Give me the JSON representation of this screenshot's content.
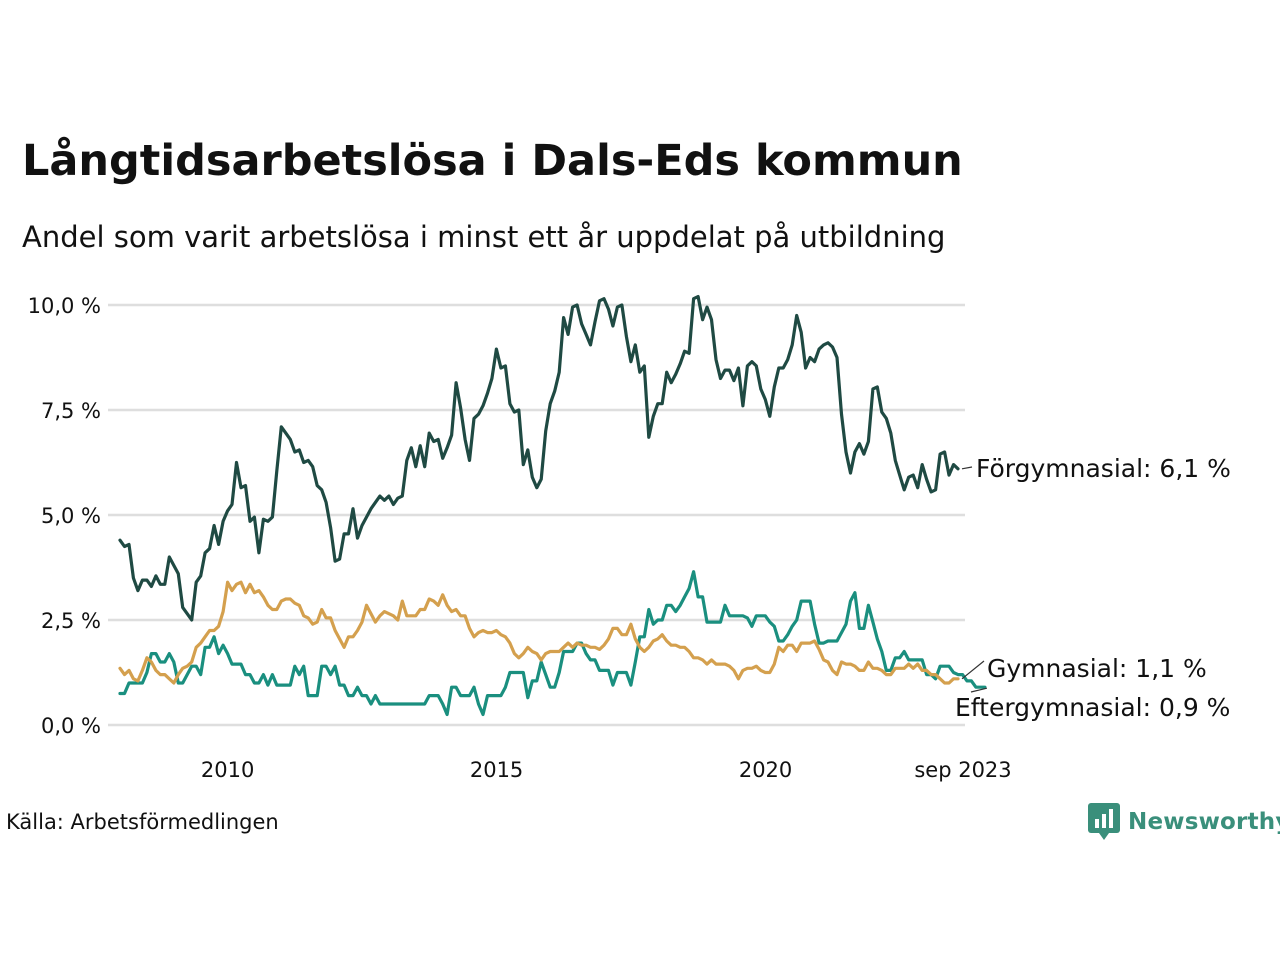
{
  "title": "Långtidsarbetslösa i Dals-Eds kommun",
  "subtitle": "Andel som varit arbetslösa i minst ett år uppdelat på utbildning",
  "source": "Källa: Arbetsförmedlingen",
  "brand": {
    "name": "Newsworthy",
    "icon": "newsworthy-logo-icon",
    "color": "#3a8f7b"
  },
  "chart_data": {
    "type": "line",
    "title": "Långtidsarbetslösa i Dals-Eds kommun",
    "subtitle": "Andel som varit arbetslösa i minst ett år uppdelat på utbildning",
    "xlabel": "",
    "ylabel": "",
    "x_start": 2008.0,
    "x_step": 0.0833,
    "xlim": [
      2008.0,
      2023.67
    ],
    "ylim": [
      0,
      10
    ],
    "grid": true,
    "legend": "direct labels at line ends",
    "y_ticks": [
      {
        "value": 0,
        "label": "0,0 %"
      },
      {
        "value": 2.5,
        "label": "2,5 %"
      },
      {
        "value": 5,
        "label": "5,0 %"
      },
      {
        "value": 7.5,
        "label": "7,5 %"
      },
      {
        "value": 10,
        "label": "10,0 %"
      }
    ],
    "x_ticks": [
      {
        "value": 2010,
        "label": "2010"
      },
      {
        "value": 2015,
        "label": "2015"
      },
      {
        "value": 2020,
        "label": "2020"
      },
      {
        "value": 2023.67,
        "label": "sep 2023"
      }
    ],
    "series": [
      {
        "name": "Förgymnasial",
        "end_label": "Förgymnasial: 6,1 %",
        "color": "#1f4a43",
        "values": [
          4.4,
          4.25,
          4.3,
          3.5,
          3.2,
          3.45,
          3.45,
          3.3,
          3.55,
          3.35,
          3.35,
          4.0,
          3.8,
          3.6,
          2.8,
          2.65,
          2.5,
          3.4,
          3.55,
          4.1,
          4.2,
          4.75,
          4.3,
          4.85,
          5.1,
          5.25,
          6.25,
          5.65,
          5.7,
          4.85,
          4.95,
          4.1,
          4.9,
          4.85,
          4.95,
          6.05,
          7.1,
          6.95,
          6.8,
          6.5,
          6.55,
          6.25,
          6.3,
          6.15,
          5.7,
          5.6,
          5.3,
          4.7,
          3.9,
          3.95,
          4.55,
          4.55,
          5.15,
          4.45,
          4.75,
          4.95,
          5.15,
          5.3,
          5.45,
          5.35,
          5.45,
          5.25,
          5.4,
          5.45,
          6.3,
          6.6,
          6.15,
          6.65,
          6.15,
          6.95,
          6.75,
          6.8,
          6.35,
          6.6,
          6.9,
          8.15,
          7.55,
          6.8,
          6.3,
          7.3,
          7.4,
          7.6,
          7.9,
          8.25,
          8.95,
          8.5,
          8.55,
          7.65,
          7.45,
          7.5,
          6.2,
          6.55,
          5.9,
          5.65,
          5.85,
          7.0,
          7.65,
          7.95,
          8.4,
          9.7,
          9.3,
          9.95,
          10.0,
          9.55,
          9.3,
          9.05,
          9.6,
          10.1,
          10.15,
          9.9,
          9.5,
          9.95,
          10.0,
          9.25,
          8.65,
          9.05,
          8.4,
          8.55,
          6.85,
          7.35,
          7.65,
          7.65,
          8.4,
          8.15,
          8.35,
          8.6,
          8.9,
          8.85,
          10.15,
          10.2,
          9.65,
          9.95,
          9.65,
          8.7,
          8.25,
          8.45,
          8.45,
          8.2,
          8.5,
          7.6,
          8.55,
          8.65,
          8.55,
          8.0,
          7.75,
          7.35,
          8.05,
          8.5,
          8.5,
          8.7,
          9.05,
          9.75,
          9.35,
          8.5,
          8.75,
          8.65,
          8.95,
          9.05,
          9.1,
          9.0,
          8.75,
          7.4,
          6.5,
          6.0,
          6.5,
          6.7,
          6.45,
          6.75,
          8.0,
          8.05,
          7.45,
          7.3,
          6.95,
          6.3,
          5.95,
          5.6,
          5.9,
          5.95,
          5.65,
          6.2,
          5.85,
          5.55,
          5.6,
          6.45,
          6.5,
          5.95,
          6.2,
          6.1
        ]
      },
      {
        "name": "Gymnasial",
        "end_label": "Gymnasial: 1,1 %",
        "color": "#d4a04e",
        "values": [
          1.35,
          1.2,
          1.3,
          1.1,
          1.05,
          1.3,
          1.6,
          1.5,
          1.3,
          1.2,
          1.2,
          1.1,
          1.0,
          1.2,
          1.35,
          1.4,
          1.5,
          1.85,
          1.95,
          2.1,
          2.25,
          2.25,
          2.35,
          2.7,
          3.4,
          3.2,
          3.35,
          3.4,
          3.15,
          3.35,
          3.15,
          3.2,
          3.05,
          2.85,
          2.75,
          2.75,
          2.95,
          3.0,
          3.0,
          2.9,
          2.85,
          2.6,
          2.55,
          2.4,
          2.45,
          2.75,
          2.55,
          2.55,
          2.25,
          2.05,
          1.85,
          2.1,
          2.1,
          2.25,
          2.45,
          2.85,
          2.65,
          2.45,
          2.6,
          2.7,
          2.65,
          2.6,
          2.5,
          2.95,
          2.6,
          2.6,
          2.6,
          2.75,
          2.75,
          3.0,
          2.95,
          2.85,
          3.1,
          2.85,
          2.7,
          2.75,
          2.6,
          2.6,
          2.3,
          2.1,
          2.2,
          2.25,
          2.2,
          2.2,
          2.25,
          2.15,
          2.1,
          1.95,
          1.7,
          1.6,
          1.7,
          1.85,
          1.75,
          1.7,
          1.55,
          1.7,
          1.75,
          1.75,
          1.75,
          1.85,
          1.95,
          1.85,
          1.95,
          1.9,
          1.9,
          1.85,
          1.85,
          1.8,
          1.9,
          2.05,
          2.3,
          2.3,
          2.15,
          2.15,
          2.4,
          2.05,
          1.85,
          1.75,
          1.85,
          2.0,
          2.05,
          2.15,
          2.0,
          1.9,
          1.9,
          1.85,
          1.85,
          1.75,
          1.6,
          1.6,
          1.55,
          1.45,
          1.55,
          1.45,
          1.45,
          1.45,
          1.4,
          1.3,
          1.1,
          1.3,
          1.35,
          1.35,
          1.4,
          1.3,
          1.25,
          1.25,
          1.45,
          1.85,
          1.75,
          1.9,
          1.9,
          1.75,
          1.95,
          1.95,
          1.95,
          2.0,
          1.8,
          1.55,
          1.5,
          1.3,
          1.2,
          1.5,
          1.45,
          1.45,
          1.4,
          1.3,
          1.3,
          1.5,
          1.35,
          1.35,
          1.3,
          1.2,
          1.2,
          1.35,
          1.35,
          1.35,
          1.45,
          1.35,
          1.45,
          1.3,
          1.3,
          1.2,
          1.2,
          1.1,
          1.0,
          1.0,
          1.1,
          1.1
        ]
      },
      {
        "name": "Eftergymnasial",
        "end_label": "Eftergymnasial: 0,9 %",
        "color": "#1a8f7f",
        "values": [
          0.75,
          0.75,
          1.0,
          1.0,
          1.0,
          1.0,
          1.25,
          1.7,
          1.7,
          1.5,
          1.5,
          1.7,
          1.5,
          1.0,
          1.0,
          1.2,
          1.4,
          1.4,
          1.2,
          1.85,
          1.85,
          2.1,
          1.7,
          1.9,
          1.7,
          1.45,
          1.45,
          1.45,
          1.2,
          1.2,
          1.0,
          1.0,
          1.2,
          0.95,
          1.2,
          0.95,
          0.95,
          0.95,
          0.95,
          1.4,
          1.2,
          1.4,
          0.7,
          0.7,
          0.7,
          1.4,
          1.4,
          1.2,
          1.4,
          0.95,
          0.95,
          0.7,
          0.7,
          0.9,
          0.7,
          0.7,
          0.5,
          0.7,
          0.5,
          0.5,
          0.5,
          0.5,
          0.5,
          0.5,
          0.5,
          0.5,
          0.5,
          0.5,
          0.5,
          0.7,
          0.7,
          0.7,
          0.5,
          0.25,
          0.9,
          0.9,
          0.7,
          0.7,
          0.7,
          0.9,
          0.5,
          0.25,
          0.7,
          0.7,
          0.7,
          0.7,
          0.9,
          1.25,
          1.25,
          1.25,
          1.25,
          0.65,
          1.05,
          1.05,
          1.5,
          1.2,
          0.9,
          0.9,
          1.25,
          1.75,
          1.75,
          1.75,
          1.95,
          1.95,
          1.7,
          1.55,
          1.55,
          1.3,
          1.3,
          1.3,
          0.95,
          1.25,
          1.25,
          1.25,
          0.95,
          1.5,
          2.1,
          2.1,
          2.75,
          2.4,
          2.5,
          2.5,
          2.85,
          2.85,
          2.7,
          2.85,
          3.05,
          3.25,
          3.65,
          3.05,
          3.05,
          2.45,
          2.45,
          2.45,
          2.45,
          2.85,
          2.6,
          2.6,
          2.6,
          2.6,
          2.55,
          2.35,
          2.6,
          2.6,
          2.6,
          2.45,
          2.35,
          2.0,
          2.0,
          2.15,
          2.35,
          2.5,
          2.95,
          2.95,
          2.95,
          2.4,
          1.95,
          1.95,
          2.0,
          2.0,
          2.0,
          2.2,
          2.4,
          2.95,
          3.15,
          2.3,
          2.3,
          2.85,
          2.45,
          2.05,
          1.75,
          1.3,
          1.3,
          1.6,
          1.6,
          1.75,
          1.55,
          1.55,
          1.55,
          1.55,
          1.2,
          1.2,
          1.1,
          1.4,
          1.4,
          1.4,
          1.25,
          1.2,
          1.2,
          1.05,
          1.05,
          0.9,
          0.9,
          0.9
        ]
      }
    ]
  }
}
